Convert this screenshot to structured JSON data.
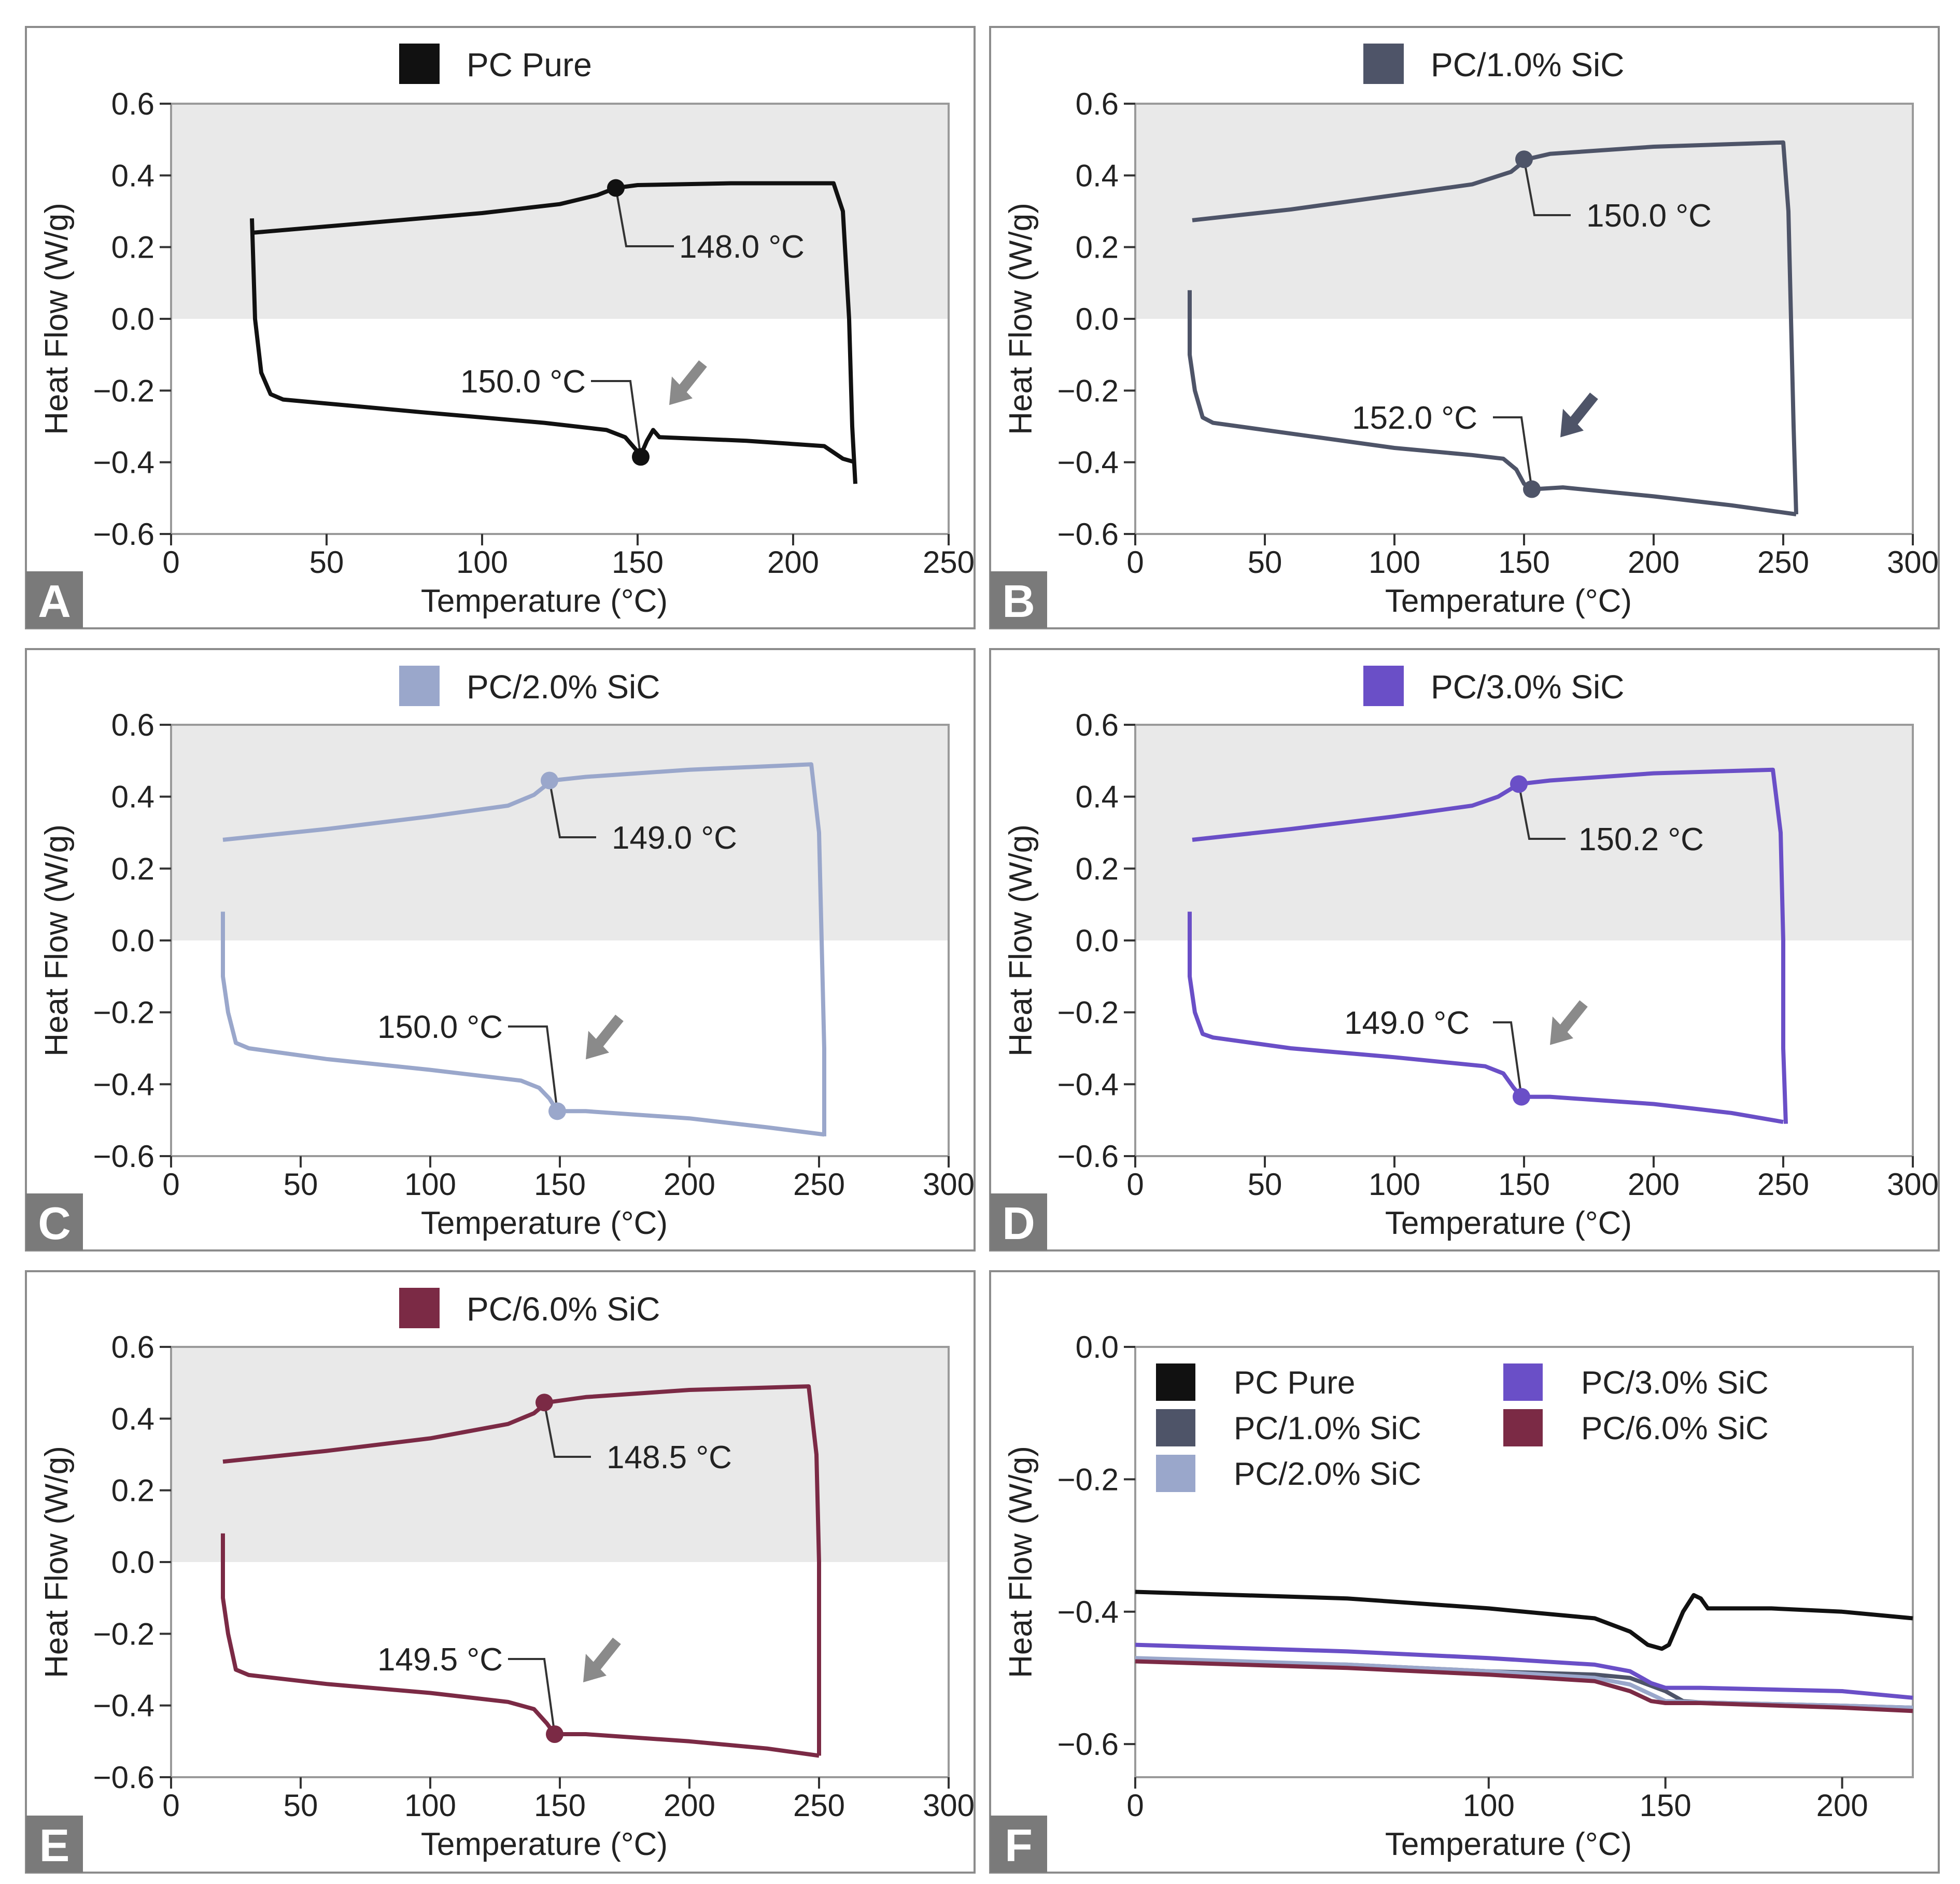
{
  "colors": {
    "pc_pure": "#111111",
    "pc_1": "#4e5468",
    "pc_2": "#9aa7cb",
    "pc_3": "#6a4fc7",
    "pc_6": "#7b2a45",
    "shade": "#e9e9e9",
    "arrow": "#8a8a8a",
    "panel_label_bg": "#7a7a7a",
    "frame": "#8c8c8c"
  },
  "chart_data": [
    {
      "panel": "A",
      "type": "line",
      "legend": "PC Pure",
      "color_key": "pc_pure",
      "xlabel": "Temperature (°C)",
      "ylabel": "Heat Flow (W/g)",
      "xlim": [
        0,
        250
      ],
      "ylim": [
        -0.6,
        0.6
      ],
      "xticks": [
        "0",
        "50",
        "100",
        "150",
        "200",
        "250"
      ],
      "yticks": [
        "0.6",
        "0.4",
        "0.2",
        "0.0",
        "−0.2",
        "−0.4",
        "−0.6"
      ],
      "arrow_color_key": "arrow",
      "upper_curve": [
        [
          26,
          0.24
        ],
        [
          60,
          0.265
        ],
        [
          100,
          0.295
        ],
        [
          125,
          0.32
        ],
        [
          137,
          0.345
        ],
        [
          143,
          0.365
        ],
        [
          150,
          0.373
        ],
        [
          180,
          0.378
        ],
        [
          213,
          0.378
        ],
        [
          216,
          0.3
        ],
        [
          218,
          0.0
        ],
        [
          219,
          -0.3
        ],
        [
          220,
          -0.46
        ]
      ],
      "lower_curve": [
        [
          26,
          0.28
        ],
        [
          27,
          0.0
        ],
        [
          29,
          -0.15
        ],
        [
          32,
          -0.21
        ],
        [
          36,
          -0.225
        ],
        [
          80,
          -0.26
        ],
        [
          120,
          -0.29
        ],
        [
          140,
          -0.31
        ],
        [
          146,
          -0.33
        ],
        [
          149,
          -0.36
        ],
        [
          151,
          -0.38
        ],
        [
          153,
          -0.34
        ],
        [
          155,
          -0.31
        ],
        [
          157,
          -0.33
        ],
        [
          185,
          -0.34
        ],
        [
          210,
          -0.355
        ],
        [
          216,
          -0.39
        ],
        [
          220,
          -0.4
        ]
      ],
      "upper_point": {
        "x": 143,
        "y": 0.365,
        "label": "148.0 °C"
      },
      "lower_point": {
        "x": 151,
        "y": -0.385,
        "label": "150.0 °C"
      }
    },
    {
      "panel": "B",
      "type": "line",
      "legend": "PC/1.0% SiC",
      "color_key": "pc_1",
      "xlabel": "Temperature (°C)",
      "ylabel": "Heat Flow (W/g)",
      "xlim": [
        0,
        300
      ],
      "ylim": [
        -0.6,
        0.6
      ],
      "xticks": [
        "0",
        "50",
        "100",
        "150",
        "200",
        "250",
        "300"
      ],
      "yticks": [
        "0.6",
        "0.4",
        "0.2",
        "0.0",
        "−0.2",
        "−0.4",
        "−0.6"
      ],
      "arrow_color_key": "pc_1",
      "upper_curve": [
        [
          22,
          0.275
        ],
        [
          60,
          0.305
        ],
        [
          100,
          0.345
        ],
        [
          130,
          0.375
        ],
        [
          145,
          0.41
        ],
        [
          151,
          0.445
        ],
        [
          160,
          0.46
        ],
        [
          200,
          0.48
        ],
        [
          250,
          0.492
        ],
        [
          252,
          0.3
        ],
        [
          253,
          0.0
        ],
        [
          254,
          -0.3
        ],
        [
          255,
          -0.545
        ]
      ],
      "lower_curve": [
        [
          21,
          0.08
        ],
        [
          21,
          -0.1
        ],
        [
          23,
          -0.2
        ],
        [
          26,
          -0.275
        ],
        [
          30,
          -0.29
        ],
        [
          60,
          -0.32
        ],
        [
          100,
          -0.36
        ],
        [
          130,
          -0.38
        ],
        [
          142,
          -0.39
        ],
        [
          147,
          -0.42
        ],
        [
          150,
          -0.46
        ],
        [
          154,
          -0.475
        ],
        [
          165,
          -0.47
        ],
        [
          200,
          -0.495
        ],
        [
          230,
          -0.52
        ],
        [
          255,
          -0.545
        ]
      ],
      "upper_point": {
        "x": 150,
        "y": 0.445,
        "label": "150.0 °C"
      },
      "lower_point": {
        "x": 153,
        "y": -0.475,
        "label": "152.0 °C"
      }
    },
    {
      "panel": "C",
      "type": "line",
      "legend": "PC/2.0% SiC",
      "color_key": "pc_2",
      "xlabel": "Temperature (°C)",
      "ylabel": "Heat Flow (W/g)",
      "xlim": [
        0,
        300
      ],
      "ylim": [
        -0.6,
        0.6
      ],
      "xticks": [
        "0",
        "50",
        "100",
        "150",
        "200",
        "250",
        "300"
      ],
      "yticks": [
        "0.6",
        "0.4",
        "0.2",
        "0.0",
        "−0.2",
        "−0.4",
        "−0.6"
      ],
      "arrow_color_key": "arrow",
      "upper_curve": [
        [
          20,
          0.28
        ],
        [
          60,
          0.31
        ],
        [
          100,
          0.345
        ],
        [
          130,
          0.375
        ],
        [
          140,
          0.405
        ],
        [
          147,
          0.445
        ],
        [
          160,
          0.455
        ],
        [
          200,
          0.475
        ],
        [
          247,
          0.49
        ],
        [
          250,
          0.3
        ],
        [
          251,
          0.0
        ],
        [
          252,
          -0.3
        ],
        [
          252,
          -0.545
        ]
      ],
      "lower_curve": [
        [
          20,
          0.08
        ],
        [
          20,
          -0.1
        ],
        [
          22,
          -0.2
        ],
        [
          25,
          -0.285
        ],
        [
          30,
          -0.3
        ],
        [
          60,
          -0.33
        ],
        [
          100,
          -0.36
        ],
        [
          135,
          -0.39
        ],
        [
          142,
          -0.41
        ],
        [
          146,
          -0.44
        ],
        [
          149,
          -0.475
        ],
        [
          160,
          -0.475
        ],
        [
          200,
          -0.495
        ],
        [
          230,
          -0.52
        ],
        [
          252,
          -0.54
        ]
      ],
      "upper_point": {
        "x": 146,
        "y": 0.445,
        "label": "149.0 °C"
      },
      "lower_point": {
        "x": 149,
        "y": -0.475,
        "label": "150.0 °C"
      }
    },
    {
      "panel": "D",
      "type": "line",
      "legend": "PC/3.0% SiC",
      "color_key": "pc_3",
      "xlabel": "Temperature (°C)",
      "ylabel": "Heat Flow (W/g)",
      "xlim": [
        0,
        300
      ],
      "ylim": [
        -0.6,
        0.6
      ],
      "xticks": [
        "0",
        "50",
        "100",
        "150",
        "200",
        "250",
        "300"
      ],
      "yticks": [
        "0.6",
        "0.4",
        "0.2",
        "0.0",
        "−0.2",
        "−0.4",
        "−0.6"
      ],
      "arrow_color_key": "arrow",
      "upper_curve": [
        [
          22,
          0.28
        ],
        [
          60,
          0.31
        ],
        [
          100,
          0.345
        ],
        [
          130,
          0.375
        ],
        [
          140,
          0.4
        ],
        [
          148,
          0.435
        ],
        [
          160,
          0.445
        ],
        [
          200,
          0.465
        ],
        [
          246,
          0.475
        ],
        [
          249,
          0.3
        ],
        [
          250,
          0.0
        ],
        [
          250,
          -0.3
        ],
        [
          251,
          -0.51
        ]
      ],
      "lower_curve": [
        [
          21,
          0.08
        ],
        [
          21,
          -0.1
        ],
        [
          23,
          -0.2
        ],
        [
          26,
          -0.26
        ],
        [
          30,
          -0.27
        ],
        [
          60,
          -0.3
        ],
        [
          100,
          -0.325
        ],
        [
          135,
          -0.35
        ],
        [
          142,
          -0.37
        ],
        [
          146,
          -0.41
        ],
        [
          149,
          -0.435
        ],
        [
          160,
          -0.435
        ],
        [
          200,
          -0.455
        ],
        [
          230,
          -0.48
        ],
        [
          250,
          -0.505
        ]
      ],
      "upper_point": {
        "x": 148,
        "y": 0.435,
        "label": "150.2 °C"
      },
      "lower_point": {
        "x": 149,
        "y": -0.435,
        "label": "149.0 °C"
      }
    },
    {
      "panel": "E",
      "type": "line",
      "legend": "PC/6.0% SiC",
      "color_key": "pc_6",
      "xlabel": "Temperature (°C)",
      "ylabel": "Heat Flow (W/g)",
      "xlim": [
        0,
        300
      ],
      "ylim": [
        -0.6,
        0.6
      ],
      "xticks": [
        "0",
        "50",
        "100",
        "150",
        "200",
        "250",
        "300"
      ],
      "yticks": [
        "0.6",
        "0.4",
        "0.2",
        "0.0",
        "−0.2",
        "−0.4",
        "−0.6"
      ],
      "arrow_color_key": "arrow",
      "upper_curve": [
        [
          20,
          0.28
        ],
        [
          60,
          0.31
        ],
        [
          100,
          0.345
        ],
        [
          130,
          0.385
        ],
        [
          140,
          0.415
        ],
        [
          145,
          0.445
        ],
        [
          160,
          0.46
        ],
        [
          200,
          0.48
        ],
        [
          246,
          0.49
        ],
        [
          249,
          0.3
        ],
        [
          250,
          0.0
        ],
        [
          250,
          -0.3
        ],
        [
          250,
          -0.54
        ]
      ],
      "lower_curve": [
        [
          20,
          0.08
        ],
        [
          20,
          -0.1
        ],
        [
          22,
          -0.2
        ],
        [
          25,
          -0.3
        ],
        [
          30,
          -0.315
        ],
        [
          60,
          -0.34
        ],
        [
          100,
          -0.365
        ],
        [
          130,
          -0.39
        ],
        [
          140,
          -0.41
        ],
        [
          145,
          -0.45
        ],
        [
          148,
          -0.48
        ],
        [
          160,
          -0.48
        ],
        [
          200,
          -0.5
        ],
        [
          230,
          -0.52
        ],
        [
          250,
          -0.54
        ]
      ],
      "upper_point": {
        "x": 144,
        "y": 0.445,
        "label": "148.5 °C"
      },
      "lower_point": {
        "x": 148,
        "y": -0.48,
        "label": "149.5 °C"
      }
    },
    {
      "panel": "F",
      "type": "line",
      "xlabel": "Temperature (°C)",
      "ylabel": "Heat Flow (W/g)",
      "xlim": [
        0,
        220
      ],
      "ylim": [
        -0.65,
        0.0
      ],
      "xtick_values": [
        0,
        100,
        150,
        200
      ],
      "xticks": [
        "0",
        "100",
        "150",
        "200"
      ],
      "ytick_values": [
        0.0,
        -0.2,
        -0.4,
        -0.6
      ],
      "yticks": [
        "0.0",
        "−0.2",
        "−0.4",
        "−0.6"
      ],
      "series": [
        {
          "name": "PC Pure",
          "color_key": "pc_pure",
          "points": [
            [
              0,
              -0.37
            ],
            [
              60,
              -0.38
            ],
            [
              100,
              -0.395
            ],
            [
              130,
              -0.41
            ],
            [
              140,
              -0.43
            ],
            [
              145,
              -0.45
            ],
            [
              149,
              -0.456
            ],
            [
              151,
              -0.45
            ],
            [
              155,
              -0.4
            ],
            [
              158,
              -0.375
            ],
            [
              160,
              -0.38
            ],
            [
              162,
              -0.395
            ],
            [
              180,
              -0.395
            ],
            [
              200,
              -0.4
            ],
            [
              220,
              -0.41
            ]
          ]
        },
        {
          "name": "PC/1.0% SiC",
          "color_key": "pc_1",
          "points": [
            [
              0,
              -0.475
            ],
            [
              60,
              -0.48
            ],
            [
              100,
              -0.49
            ],
            [
              130,
              -0.495
            ],
            [
              140,
              -0.5
            ],
            [
              150,
              -0.52
            ],
            [
              155,
              -0.535
            ],
            [
              160,
              -0.537
            ],
            [
              200,
              -0.542
            ],
            [
              220,
              -0.545
            ]
          ]
        },
        {
          "name": "PC/2.0% SiC",
          "color_key": "pc_2",
          "points": [
            [
              0,
              -0.47
            ],
            [
              60,
              -0.48
            ],
            [
              100,
              -0.49
            ],
            [
              130,
              -0.5
            ],
            [
              140,
              -0.51
            ],
            [
              146,
              -0.525
            ],
            [
              150,
              -0.535
            ],
            [
              160,
              -0.537
            ],
            [
              200,
              -0.542
            ],
            [
              220,
              -0.545
            ]
          ]
        },
        {
          "name": "PC/3.0% SiC",
          "color_key": "pc_3",
          "points": [
            [
              0,
              -0.45
            ],
            [
              60,
              -0.46
            ],
            [
              100,
              -0.47
            ],
            [
              130,
              -0.48
            ],
            [
              140,
              -0.49
            ],
            [
              146,
              -0.508
            ],
            [
              150,
              -0.515
            ],
            [
              160,
              -0.515
            ],
            [
              200,
              -0.52
            ],
            [
              220,
              -0.53
            ]
          ]
        },
        {
          "name": "PC/6.0% SiC",
          "color_key": "pc_6",
          "points": [
            [
              0,
              -0.475
            ],
            [
              60,
              -0.485
            ],
            [
              100,
              -0.495
            ],
            [
              130,
              -0.505
            ],
            [
              140,
              -0.52
            ],
            [
              146,
              -0.535
            ],
            [
              150,
              -0.538
            ],
            [
              160,
              -0.538
            ],
            [
              200,
              -0.545
            ],
            [
              220,
              -0.55
            ]
          ]
        }
      ]
    }
  ],
  "panel_labels": [
    "A",
    "B",
    "C",
    "D",
    "E",
    "F"
  ]
}
